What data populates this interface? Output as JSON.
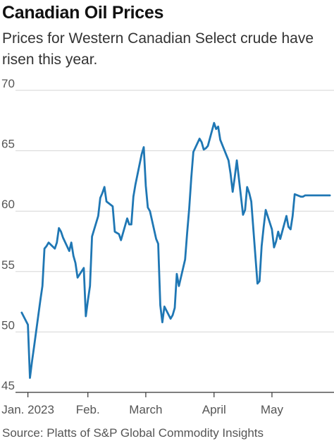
{
  "title": "Canadian Oil Prices",
  "subtitle": "Prices for Western Canadian Select crude have risen this year.",
  "source": "Source: Platts of S&P Global Commodity Insights",
  "colors": {
    "line": "#1f77b4",
    "grid": "#d6d6d6",
    "axis": "#333333",
    "text": "#555555"
  },
  "chart_data": {
    "type": "line",
    "title": "Canadian Oil Prices",
    "subtitle": "Prices for Western Canadian Select crude have risen this year.",
    "xlabel": "",
    "ylabel": "",
    "ylim": [
      45,
      70
    ],
    "yticks": [
      45,
      50,
      55,
      60,
      65,
      70
    ],
    "ytick_labels": [
      "45",
      "50",
      "55",
      "60",
      "65",
      "70"
    ],
    "xlim": [
      "2022-12-28",
      "2023-05-31"
    ],
    "xticks": [
      "2023-01-03",
      "2023-02-01",
      "2023-03-01",
      "2023-04-03",
      "2023-05-01"
    ],
    "xtick_labels": [
      "Jan. 2023",
      "Feb.",
      "March",
      "April",
      "May"
    ],
    "grid": true,
    "series": [
      {
        "x": [
          "2022-12-31",
          "2023-01-03",
          "2023-01-04",
          "2023-01-05",
          "2023-01-06",
          "2023-01-09",
          "2023-01-10",
          "2023-01-11",
          "2023-01-12",
          "2023-01-13",
          "2023-01-16",
          "2023-01-17",
          "2023-01-18",
          "2023-01-19",
          "2023-01-20",
          "2023-01-23",
          "2023-01-24",
          "2023-01-25",
          "2023-01-26",
          "2023-01-27",
          "2023-01-30",
          "2023-01-31",
          "2023-02-01",
          "2023-02-02",
          "2023-02-03",
          "2023-02-06",
          "2023-02-07",
          "2023-02-08",
          "2023-02-09",
          "2023-02-10",
          "2023-02-13",
          "2023-02-14",
          "2023-02-15",
          "2023-02-16",
          "2023-02-17",
          "2023-02-20",
          "2023-02-21",
          "2023-02-22",
          "2023-02-23",
          "2023-02-24",
          "2023-02-27",
          "2023-02-28",
          "2023-03-01",
          "2023-03-02",
          "2023-03-03",
          "2023-03-06",
          "2023-03-07",
          "2023-03-08",
          "2023-03-09",
          "2023-03-10",
          "2023-03-13",
          "2023-03-14",
          "2023-03-15",
          "2023-03-16",
          "2023-03-17",
          "2023-03-20",
          "2023-03-21",
          "2023-03-22",
          "2023-03-23",
          "2023-03-24",
          "2023-03-27",
          "2023-03-28",
          "2023-03-29",
          "2023-03-30",
          "2023-03-31",
          "2023-04-03",
          "2023-04-04",
          "2023-04-05",
          "2023-04-06",
          "2023-04-10",
          "2023-04-11",
          "2023-04-12",
          "2023-04-13",
          "2023-04-14",
          "2023-04-17",
          "2023-04-18",
          "2023-04-19",
          "2023-04-20",
          "2023-04-21",
          "2023-04-24",
          "2023-04-25",
          "2023-04-26",
          "2023-04-27",
          "2023-04-28",
          "2023-05-01",
          "2023-05-02",
          "2023-05-03",
          "2023-05-04",
          "2023-05-05",
          "2023-05-08",
          "2023-05-09",
          "2023-05-10",
          "2023-05-11",
          "2023-05-12",
          "2023-05-15",
          "2023-05-16",
          "2023-05-17",
          "2023-05-18",
          "2023-05-19",
          "2023-05-22",
          "2023-05-23",
          "2023-05-24",
          "2023-05-25",
          "2023-05-26",
          "2023-05-29"
        ],
        "values": [
          51.6,
          50.6,
          46.2,
          47.6,
          48.8,
          52.6,
          53.8,
          56.9,
          57.1,
          57.4,
          56.9,
          57.4,
          58.6,
          58.3,
          57.8,
          56.7,
          57.4,
          56.3,
          55.7,
          54.5,
          55.3,
          51.3,
          52.6,
          53.8,
          57.9,
          59.6,
          61.1,
          61.5,
          62.0,
          60.8,
          60.4,
          58.3,
          58.2,
          58.1,
          57.6,
          59.4,
          58.9,
          58.9,
          61.2,
          62.2,
          64.7,
          65.3,
          62.1,
          60.3,
          60.0,
          57.7,
          57.3,
          52.2,
          50.8,
          52.1,
          51.1,
          51.4,
          52.0,
          54.8,
          53.8,
          56.0,
          58.2,
          60.2,
          62.8,
          64.9,
          66.0,
          65.7,
          65.1,
          65.2,
          65.4,
          67.3,
          66.8,
          67.0,
          65.9,
          64.2,
          63.1,
          61.6,
          62.8,
          64.2,
          59.7,
          60.1,
          62.0,
          61.5,
          60.8,
          54.0,
          54.2,
          57.1,
          58.7,
          60.1,
          58.5,
          57.0,
          57.5,
          58.3,
          57.7,
          59.6,
          58.7,
          58.5,
          59.6,
          61.4,
          61.2,
          61.2,
          61.3,
          61.3,
          61.3,
          61.3,
          61.3,
          61.3,
          61.3,
          61.3,
          61.3
        ]
      }
    ]
  }
}
